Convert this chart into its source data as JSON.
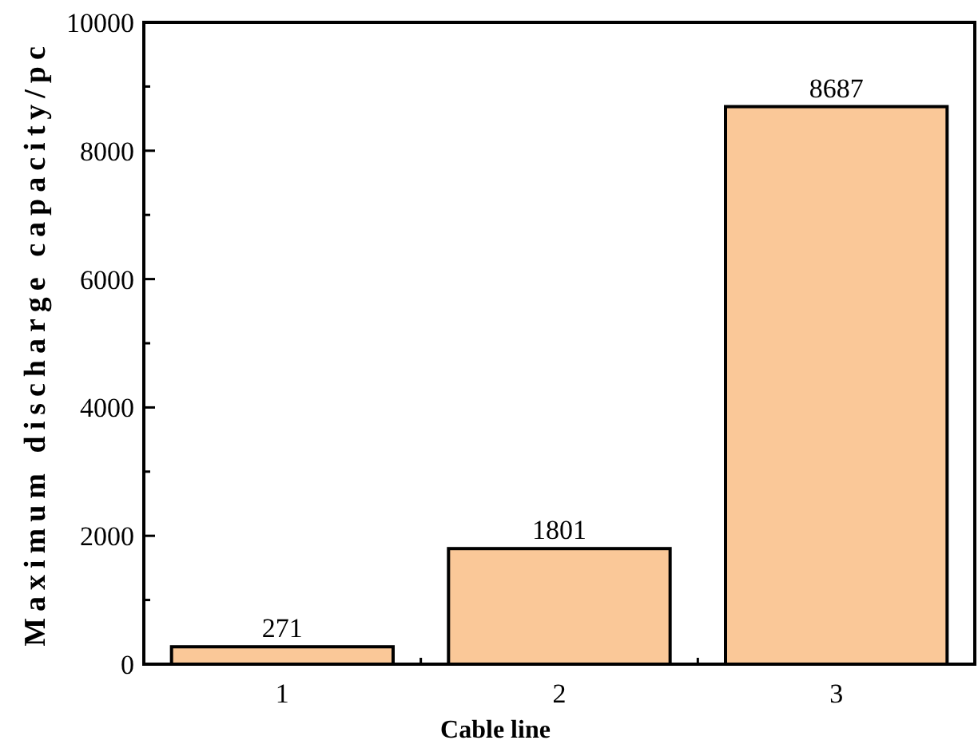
{
  "chart_data": {
    "type": "bar",
    "xlabel": "Cable line",
    "ylabel": "Maximum discharge capacity/pc",
    "categories": [
      "1",
      "2",
      "3"
    ],
    "values": [
      271,
      1801,
      8687
    ],
    "color": "#fac898",
    "data_labels": true,
    "ylim": [
      0,
      10000
    ],
    "yticks": [
      0,
      {
        "value": 1000,
        "label": null
      },
      2000,
      {
        "value": 3000,
        "label": null
      },
      4000,
      {
        "value": 5000,
        "label": null
      },
      6000,
      {
        "value": 7000,
        "label": null
      },
      8000,
      {
        "value": 9000,
        "label": null
      },
      10000
    ],
    "grid": false
  }
}
